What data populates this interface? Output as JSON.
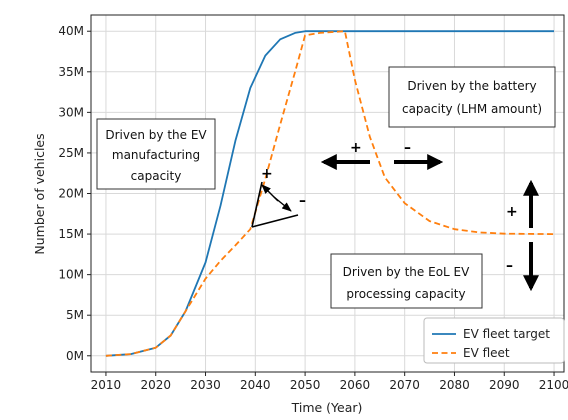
{
  "chart_data": {
    "type": "line",
    "xlabel": "Time (Year)",
    "ylabel": "Number of vehicles",
    "xlim": [
      2007,
      2102
    ],
    "ylim": [
      -2,
      42
    ],
    "x_ticks": [
      "2010",
      "2020",
      "2030",
      "2040",
      "2050",
      "2060",
      "2070",
      "2080",
      "2090",
      "2100"
    ],
    "y_ticks": [
      "0M",
      "5M",
      "10M",
      "15M",
      "20M",
      "25M",
      "30M",
      "35M",
      "40M"
    ],
    "grid": true,
    "legend_position": "bottom-right",
    "series": [
      {
        "name": "EV fleet target",
        "color": "#1f77b4",
        "style": "solid",
        "points": [
          [
            2010,
            0
          ],
          [
            2015,
            0.2
          ],
          [
            2020,
            1.0
          ],
          [
            2023,
            2.5
          ],
          [
            2026,
            5.5
          ],
          [
            2030,
            11.5
          ],
          [
            2033,
            18.5
          ],
          [
            2036,
            26.5
          ],
          [
            2039,
            33
          ],
          [
            2042,
            37
          ],
          [
            2045,
            39
          ],
          [
            2048,
            39.8
          ],
          [
            2050,
            40
          ],
          [
            2060,
            40
          ],
          [
            2070,
            40
          ],
          [
            2080,
            40
          ],
          [
            2090,
            40
          ],
          [
            2100,
            40
          ]
        ]
      },
      {
        "name": "EV fleet",
        "color": "#ff7f0e",
        "style": "dashed",
        "points": [
          [
            2010,
            0
          ],
          [
            2015,
            0.2
          ],
          [
            2020,
            1.0
          ],
          [
            2023,
            2.5
          ],
          [
            2026,
            5.5
          ],
          [
            2028,
            7.5
          ],
          [
            2030,
            9.5
          ],
          [
            2033,
            11.7
          ],
          [
            2036,
            13.6
          ],
          [
            2039,
            15.6
          ],
          [
            2042,
            21.8
          ],
          [
            2045,
            28.5
          ],
          [
            2048,
            35
          ],
          [
            2050,
            39.5
          ],
          [
            2053,
            39.8
          ],
          [
            2058,
            40
          ],
          [
            2060,
            34
          ],
          [
            2063,
            27
          ],
          [
            2066,
            22
          ],
          [
            2070,
            18.8
          ],
          [
            2075,
            16.6
          ],
          [
            2080,
            15.6
          ],
          [
            2085,
            15.2
          ],
          [
            2090,
            15.05
          ],
          [
            2100,
            15
          ]
        ]
      }
    ]
  },
  "annotations": {
    "box_manufacturing": [
      "Driven by the EV",
      "manufacturing",
      "capacity"
    ],
    "box_battery": [
      "Driven by the battery",
      "capacity (LHM amount)"
    ],
    "box_eol": [
      "Driven by the EoL EV",
      "processing capacity"
    ],
    "plus": "+",
    "minus": "–"
  }
}
